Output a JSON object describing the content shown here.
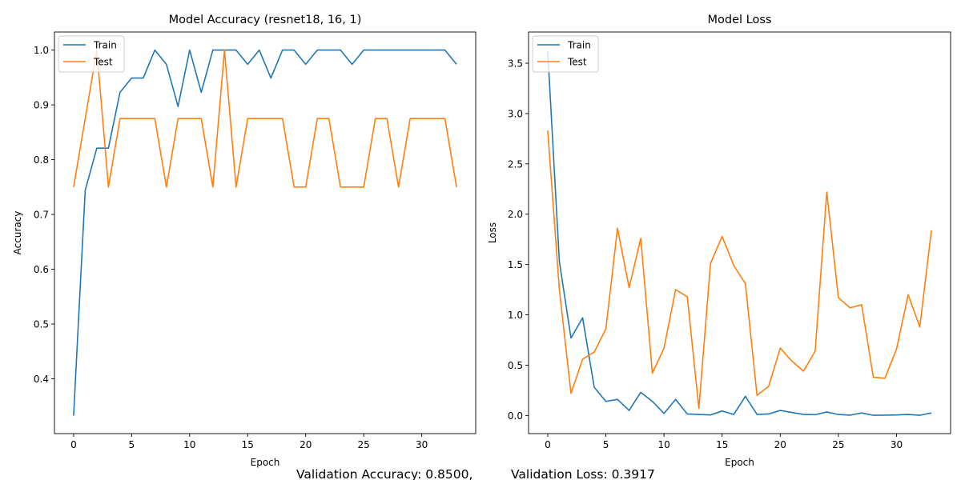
{
  "chart_data": [
    {
      "type": "line",
      "title": "Model Accuracy (resnet18, 16, 1)",
      "xlabel": "Epoch",
      "ylabel": "Accuracy",
      "xlim": [
        -1.65,
        34.65
      ],
      "ylim": [
        0.3,
        1.033
      ],
      "xticks": [
        0,
        5,
        10,
        15,
        20,
        25,
        30
      ],
      "yticks": [
        0.4,
        0.5,
        0.6,
        0.7,
        0.8,
        0.9,
        1.0
      ],
      "ytick_labels": [
        "0.4",
        "0.5",
        "0.6",
        "0.7",
        "0.8",
        "0.9",
        "1.0"
      ],
      "grid": false,
      "legend_position": "top-left",
      "x": [
        0,
        1,
        2,
        3,
        4,
        5,
        6,
        7,
        8,
        9,
        10,
        11,
        12,
        13,
        14,
        15,
        16,
        17,
        18,
        19,
        20,
        21,
        22,
        23,
        24,
        25,
        26,
        27,
        28,
        29,
        30,
        31,
        32,
        33
      ],
      "series": [
        {
          "name": "Train",
          "color": "#1f77b4",
          "values": [
            0.333,
            0.744,
            0.821,
            0.821,
            0.923,
            0.949,
            0.949,
            1.0,
            0.974,
            0.897,
            1.0,
            0.923,
            1.0,
            1.0,
            1.0,
            0.974,
            1.0,
            0.949,
            1.0,
            1.0,
            0.974,
            1.0,
            1.0,
            1.0,
            0.974,
            1.0,
            1.0,
            1.0,
            1.0,
            1.0,
            1.0,
            1.0,
            1.0,
            0.974
          ]
        },
        {
          "name": "Test",
          "color": "#ff7f0e",
          "values": [
            0.75,
            0.875,
            1.0,
            0.75,
            0.875,
            0.875,
            0.875,
            0.875,
            0.75,
            0.875,
            0.875,
            0.875,
            0.75,
            1.0,
            0.75,
            0.875,
            0.875,
            0.875,
            0.875,
            0.75,
            0.75,
            0.875,
            0.875,
            0.75,
            0.75,
            0.75,
            0.875,
            0.875,
            0.75,
            0.875,
            0.875,
            0.875,
            0.875,
            0.75
          ]
        }
      ]
    },
    {
      "type": "line",
      "title": "Model Loss",
      "xlabel": "Epoch",
      "ylabel": "Loss",
      "xlim": [
        -1.65,
        34.65
      ],
      "ylim": [
        -0.18,
        3.81
      ],
      "xticks": [
        0,
        5,
        10,
        15,
        20,
        25,
        30
      ],
      "yticks": [
        0.0,
        0.5,
        1.0,
        1.5,
        2.0,
        2.5,
        3.0,
        3.5
      ],
      "ytick_labels": [
        "0.0",
        "0.5",
        "1.0",
        "1.5",
        "2.0",
        "2.5",
        "3.0",
        "3.5"
      ],
      "grid": false,
      "legend_position": "top-left",
      "x": [
        0,
        1,
        2,
        3,
        4,
        5,
        6,
        7,
        8,
        9,
        10,
        11,
        12,
        13,
        14,
        15,
        16,
        17,
        18,
        19,
        20,
        21,
        22,
        23,
        24,
        25,
        26,
        27,
        28,
        29,
        30,
        31,
        32,
        33
      ],
      "series": [
        {
          "name": "Train",
          "color": "#1f77b4",
          "values": [
            3.62,
            1.53,
            0.77,
            0.97,
            0.28,
            0.14,
            0.16,
            0.05,
            0.23,
            0.14,
            0.02,
            0.16,
            0.015,
            0.01,
            0.005,
            0.045,
            0.01,
            0.19,
            0.01,
            0.015,
            0.05,
            0.03,
            0.01,
            0.008,
            0.035,
            0.01,
            0.003,
            0.025,
            0.002,
            0.003,
            0.005,
            0.01,
            0.002,
            0.025
          ]
        },
        {
          "name": "Test",
          "color": "#ff7f0e",
          "values": [
            2.83,
            1.25,
            0.22,
            0.56,
            0.63,
            0.86,
            1.86,
            1.27,
            1.76,
            0.42,
            0.67,
            1.25,
            1.18,
            0.07,
            1.51,
            1.78,
            1.49,
            1.31,
            0.2,
            0.29,
            0.67,
            0.54,
            0.44,
            0.64,
            2.22,
            1.17,
            1.07,
            1.1,
            0.38,
            0.37,
            0.66,
            1.2,
            0.88,
            1.84
          ]
        }
      ]
    }
  ],
  "footer": {
    "validation_accuracy": "Validation Accuracy: 0.8500,",
    "validation_loss": "Validation Loss: 0.3917"
  }
}
